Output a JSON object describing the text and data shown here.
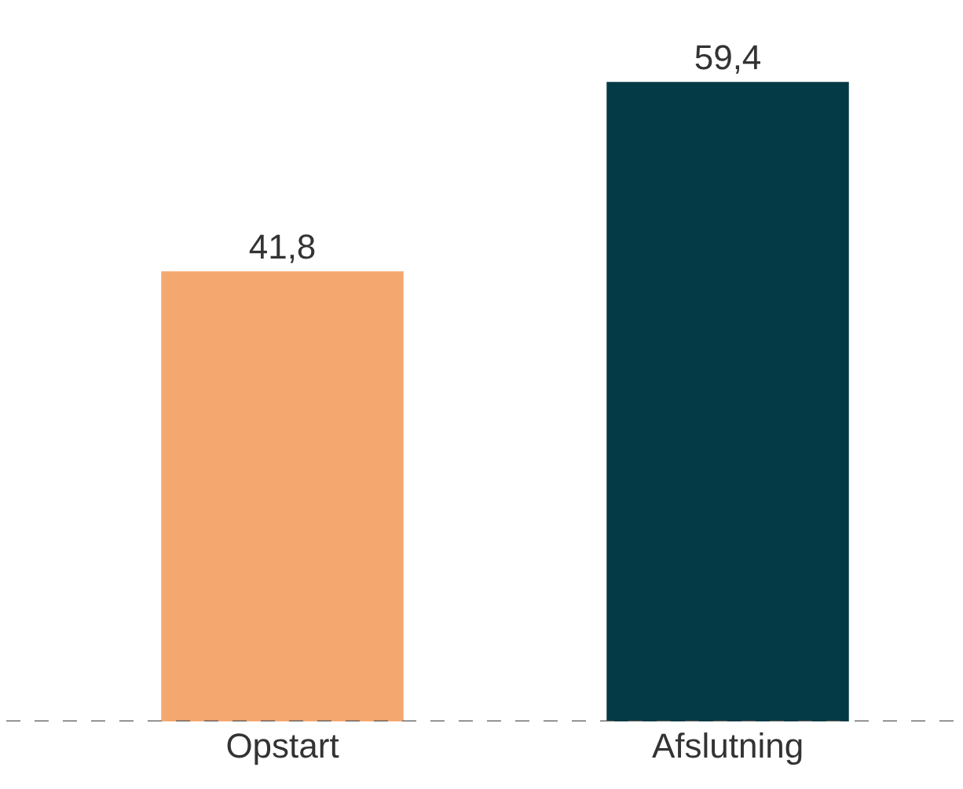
{
  "chart_data": {
    "type": "bar",
    "categories": [
      "Opstart",
      "Afslutning"
    ],
    "values": [
      41.8,
      59.4
    ],
    "colors": [
      "#f4a870",
      "#043a45"
    ],
    "value_labels": [
      "41,8",
      "59,4"
    ],
    "ylim": [
      0,
      67
    ],
    "tick_labels": "x",
    "ref_lines": [
      {
        "axis": "y",
        "value": 0,
        "color": "#555555",
        "line_style": "dashed"
      }
    ]
  }
}
